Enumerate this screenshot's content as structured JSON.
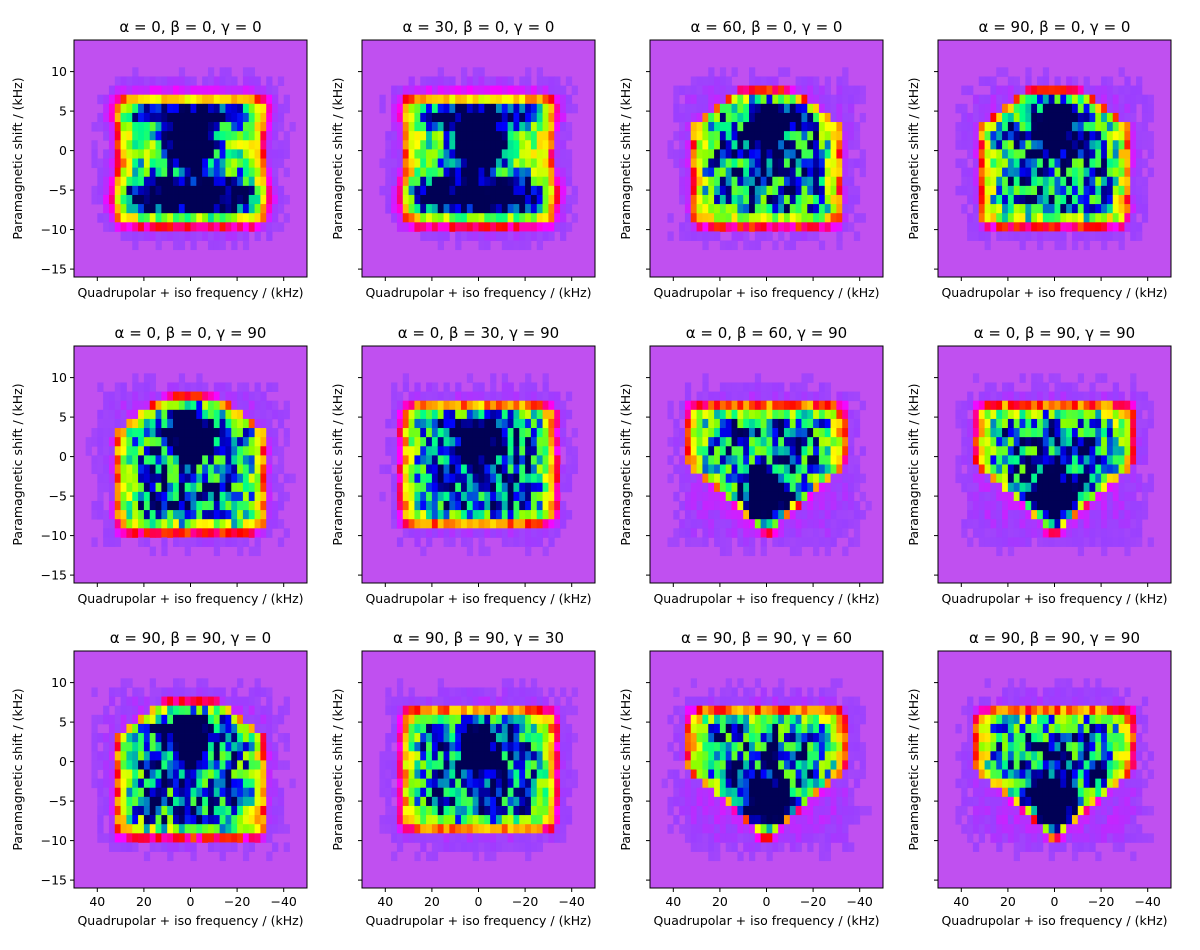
{
  "chart_data": {
    "type": "heatmap",
    "xlabel": "Quadrupolar + iso frequency / (kHz)",
    "ylabel": "Paramagnetic shift / (kHz)",
    "xlim": [
      50,
      -50
    ],
    "ylim": [
      -16,
      14
    ],
    "xticks": [
      40,
      20,
      0,
      -20,
      -40
    ],
    "xtick_labels": [
      "40",
      "20",
      "0",
      "−20",
      "−40"
    ],
    "yticks": [
      10,
      5,
      0,
      -5,
      -10,
      -15
    ],
    "ytick_labels": [
      "10",
      "5",
      "0",
      "−5",
      "−10",
      "−15"
    ],
    "colormap": [
      "#bb55ee",
      "#9a40ff",
      "#ff00ff",
      "#ff0000",
      "#ffaa00",
      "#ffff00",
      "#88ff00",
      "#00ff88",
      "#0000ff",
      "#000055"
    ],
    "background_color": "#c050f0",
    "grid": false,
    "panels": [
      {
        "title": "α = 0, β = 0, γ = 0",
        "shape": "center-peak"
      },
      {
        "title": "α = 30, β = 0, γ = 0",
        "shape": "center-peak"
      },
      {
        "title": "α = 60, β = 0, γ = 0",
        "shape": "top-peak"
      },
      {
        "title": "α = 90, β = 0, γ = 0",
        "shape": "top-peak"
      },
      {
        "title": "α = 0, β = 0, γ = 90",
        "shape": "top-peak"
      },
      {
        "title": "α = 0, β = 30, γ = 90",
        "shape": "flat"
      },
      {
        "title": "α = 0, β = 60, γ = 90",
        "shape": "bottom-peak"
      },
      {
        "title": "α = 0, β = 90, γ = 90",
        "shape": "bottom-peak"
      },
      {
        "title": "α = 90, β = 90, γ = 0",
        "shape": "top-peak"
      },
      {
        "title": "α = 90, β = 90, γ = 30",
        "shape": "flat"
      },
      {
        "title": "α = 90, β = 90, γ = 60",
        "shape": "bottom-peak"
      },
      {
        "title": "α = 90, β = 90, γ = 90",
        "shape": "bottom-peak"
      }
    ]
  }
}
